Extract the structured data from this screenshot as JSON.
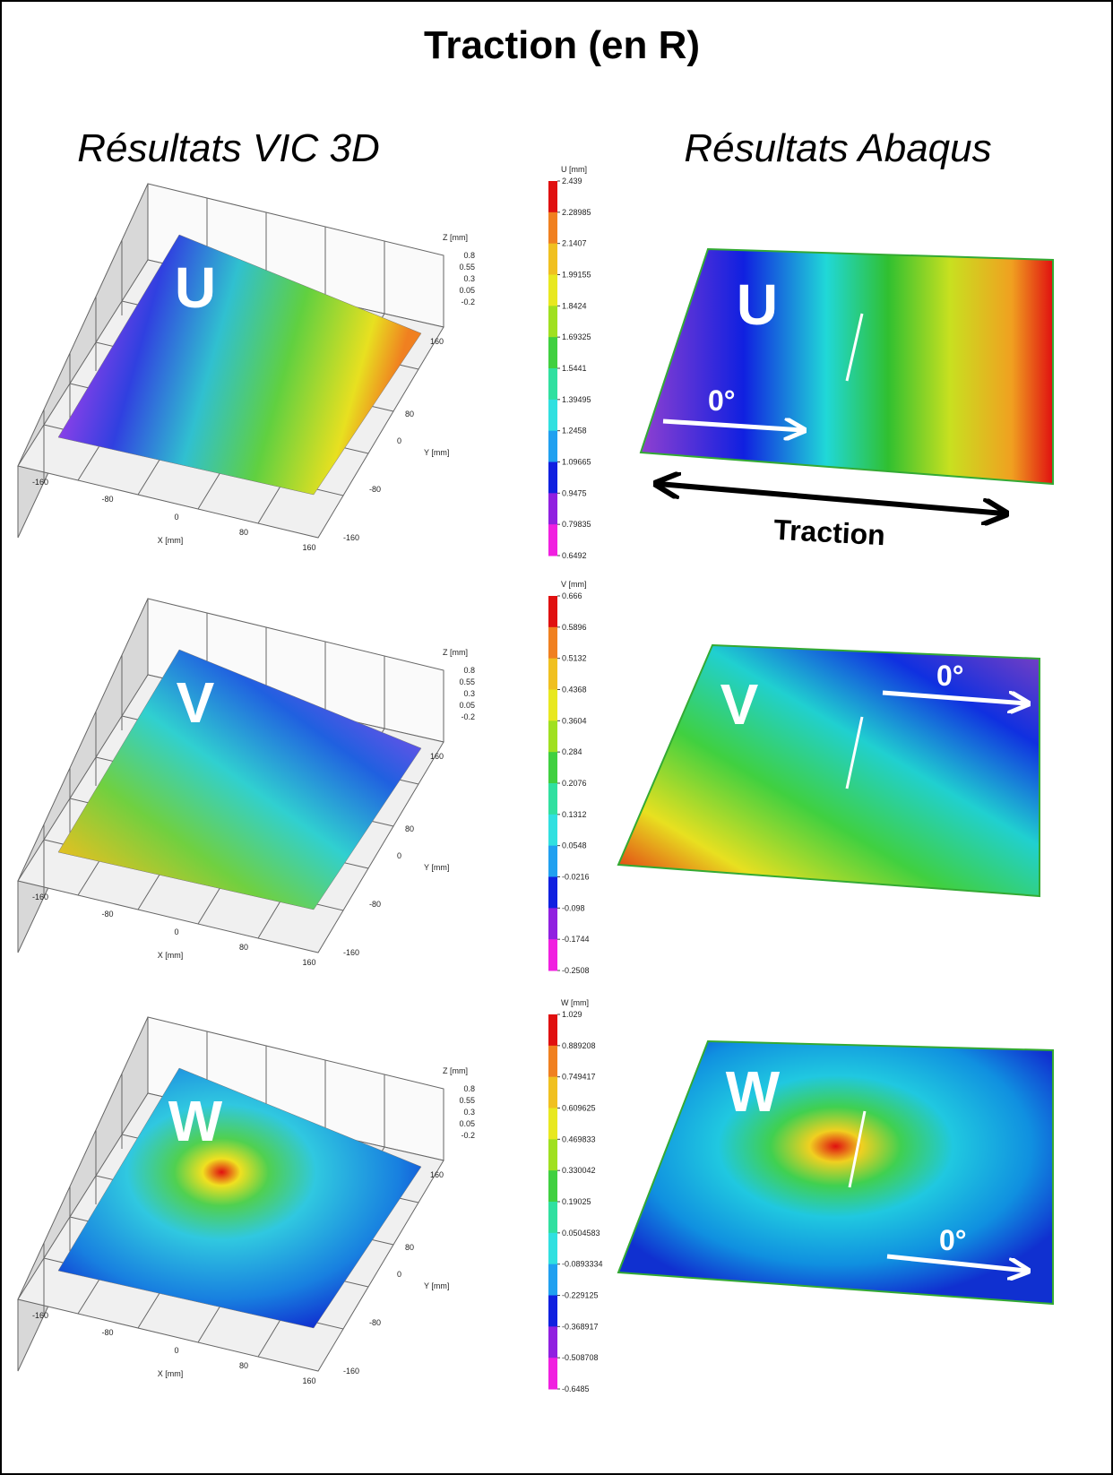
{
  "title": "Traction (en R)",
  "columns": [
    "Résultats VIC 3D",
    "Résultats Abaqus"
  ],
  "axes": {
    "z_title": "Z [mm]",
    "z_ticks": [
      "0.8",
      "0.55",
      "0.3",
      "0.05",
      "-0.2"
    ],
    "x_title": "X [mm]",
    "x_ticks": [
      "-160",
      "-80",
      "0",
      "80",
      "160"
    ],
    "y_title": "Y [mm]",
    "y_ticks": [
      "160",
      "80",
      "0",
      "-80",
      "-160"
    ]
  },
  "traction_label": "Traction",
  "rows": [
    {
      "vic_label": "U",
      "abaqus_label": "U",
      "angle": "0°",
      "colorbar": {
        "title": "U [mm]",
        "ticks": [
          "2.439",
          "2.28985",
          "2.1407",
          "1.99155",
          "1.8424",
          "1.69325",
          "1.5441",
          "1.39495",
          "1.2458",
          "1.09665",
          "0.9475",
          "0.79835",
          "0.6492"
        ]
      }
    },
    {
      "vic_label": "V",
      "abaqus_label": "V",
      "angle": "0°",
      "colorbar": {
        "title": "V [mm]",
        "ticks": [
          "0.666",
          "0.5896",
          "0.5132",
          "0.4368",
          "0.3604",
          "0.284",
          "0.2076",
          "0.1312",
          "0.0548",
          "-0.0216",
          "-0.098",
          "-0.1744",
          "-0.2508"
        ]
      }
    },
    {
      "vic_label": "W",
      "abaqus_label": "W",
      "angle": "0°",
      "colorbar": {
        "title": "W [mm]",
        "ticks": [
          "1.029",
          "0.889208",
          "0.749417",
          "0.609625",
          "0.469833",
          "0.330042",
          "0.19025",
          "0.0504583",
          "-0.0893334",
          "-0.229125",
          "-0.368917",
          "-0.508708",
          "-0.6485"
        ]
      }
    }
  ]
}
